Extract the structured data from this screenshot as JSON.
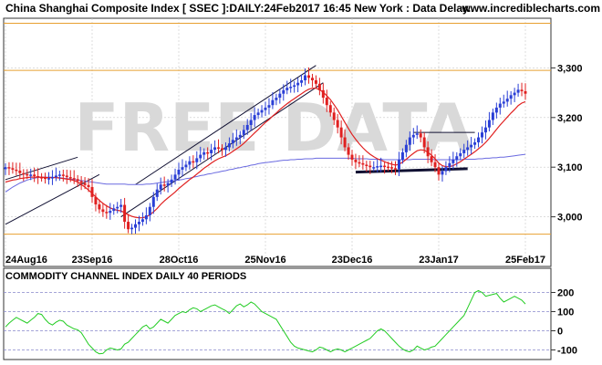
{
  "header": {
    "title": "China Shanghai Composite Index [ SSEC ]:DAILY:24Feb2017 16:45 New York : Data Delay..",
    "site": "www.incrediblecharts.com"
  },
  "watermark": "FREE DATA",
  "colors": {
    "up_candle": "#2a3fd6",
    "down_candle": "#e02020",
    "fast_ma": "#e02020",
    "slow_ma": "#6a6ae0",
    "trend_channel": "#111133",
    "resistance_line": "#e8a030",
    "cci_line": "#22cc22"
  },
  "chart_data": [
    {
      "type": "candlestick",
      "title": "China Shanghai Composite Index [ SSEC ]:DAILY:24Feb2017 16:45 New York : Data Delay..",
      "x_tick_labels": [
        "24Aug16",
        "23Sep16",
        "28Oct16",
        "25Nov16",
        "23Dec16",
        "23Jan17",
        "25Feb17"
      ],
      "y_ticks": [
        3000,
        3100,
        3200,
        3300
      ],
      "y_tick_labels": [
        "3,000",
        "3,100",
        "3,200",
        "3,300"
      ],
      "ylim": [
        2900,
        3400
      ],
      "grid": true,
      "series": [
        {
          "name": "",
          "kind": "price",
          "close": [
            3100,
            3098,
            3095,
            3093,
            3088,
            3086,
            3084,
            3085,
            3082,
            3080,
            3079,
            3077,
            3078,
            3080,
            3083,
            3085,
            3083,
            3080,
            3078,
            3076,
            3072,
            3068,
            3064,
            3060,
            3040,
            3025,
            3015,
            3010,
            3008,
            3012,
            3017,
            3020,
            3024,
            2990,
            2975,
            2978,
            2985,
            2990,
            2995,
            3003,
            3020,
            3040,
            3055,
            3065,
            3063,
            3068,
            3075,
            3085,
            3095,
            3100,
            3105,
            3112,
            3110,
            3118,
            3125,
            3130,
            3128,
            3135,
            3140,
            3138,
            3135,
            3140,
            3148,
            3155,
            3160,
            3165,
            3175,
            3185,
            3195,
            3205,
            3210,
            3215,
            3220,
            3225,
            3235,
            3240,
            3248,
            3255,
            3260,
            3262,
            3265,
            3270,
            3275,
            3285,
            3280,
            3275,
            3268,
            3255,
            3240,
            3225,
            3210,
            3195,
            3180,
            3160,
            3140,
            3125,
            3115,
            3110,
            3108,
            3105,
            3103,
            3100,
            3100,
            3102,
            3103,
            3101,
            3100,
            3098,
            3096,
            3115,
            3130,
            3145,
            3160,
            3165,
            3168,
            3160,
            3140,
            3122,
            3110,
            3100,
            3085,
            3092,
            3100,
            3108,
            3115,
            3122,
            3128,
            3135,
            3140,
            3145,
            3150,
            3160,
            3170,
            3180,
            3195,
            3210,
            3220,
            3228,
            3232,
            3238,
            3245,
            3250,
            3256,
            3253,
            3248
          ]
        },
        {
          "name": "",
          "kind": "moving-average-fast",
          "values": [
            3070,
            3072,
            3074,
            3075,
            3077,
            3078,
            3079,
            3080,
            3080,
            3080,
            3080,
            3079,
            3079,
            3079,
            3079,
            3078,
            3077,
            3076,
            3075,
            3073,
            3070,
            3065,
            3060,
            3054,
            3047,
            3040,
            3033,
            3027,
            3022,
            3018,
            3015,
            3013,
            3012,
            3008,
            3004,
            3001,
            2999,
            2998,
            2998,
            3000,
            3004,
            3010,
            3017,
            3025,
            3032,
            3038,
            3044,
            3050,
            3057,
            3063,
            3069,
            3075,
            3080,
            3086,
            3092,
            3098,
            3103,
            3108,
            3113,
            3117,
            3120,
            3123,
            3127,
            3132,
            3137,
            3142,
            3148,
            3155,
            3162,
            3169,
            3176,
            3183,
            3190,
            3196,
            3203,
            3209,
            3216,
            3222,
            3228,
            3233,
            3238,
            3243,
            3248,
            3253,
            3257,
            3259,
            3259,
            3256,
            3251,
            3244,
            3236,
            3226,
            3215,
            3203,
            3190,
            3178,
            3166,
            3156,
            3147,
            3139,
            3132,
            3126,
            3121,
            3117,
            3114,
            3111,
            3108,
            3106,
            3104,
            3106,
            3110,
            3116,
            3122,
            3128,
            3133,
            3135,
            3134,
            3130,
            3124,
            3117,
            3108,
            3103,
            3101,
            3101,
            3103,
            3107,
            3111,
            3116,
            3121,
            3126,
            3131,
            3137,
            3143,
            3150,
            3158,
            3167,
            3176,
            3185,
            3193,
            3201,
            3209,
            3216,
            3224,
            3229,
            3232
          ]
        },
        {
          "name": "",
          "kind": "moving-average-slow",
          "values": [
            3050,
            3055,
            3060,
            3064,
            3068,
            3071,
            3074,
            3076,
            3078,
            3079,
            3080,
            3080,
            3080,
            3080,
            3079,
            3079,
            3078,
            3077,
            3076,
            3075,
            3074,
            3073,
            3072,
            3071,
            3070,
            3069,
            3068,
            3067,
            3066,
            3066,
            3066,
            3066,
            3066,
            3066,
            3065,
            3065,
            3065,
            3065,
            3065,
            3066,
            3066,
            3067,
            3068,
            3069,
            3070,
            3071,
            3072,
            3073,
            3074,
            3075,
            3077,
            3078,
            3080,
            3081,
            3083,
            3084,
            3086,
            3087,
            3089,
            3090,
            3092,
            3093,
            3095,
            3096,
            3098,
            3099,
            3101,
            3102,
            3104,
            3105,
            3107,
            3108,
            3109,
            3110,
            3111,
            3112,
            3113,
            3114,
            3114,
            3115,
            3115,
            3116,
            3116,
            3117,
            3117,
            3117,
            3118,
            3118,
            3118,
            3118,
            3118,
            3118,
            3118,
            3118,
            3118,
            3118,
            3118,
            3117,
            3117,
            3117,
            3117,
            3116,
            3116,
            3116,
            3116,
            3115,
            3115,
            3115,
            3115,
            3115,
            3115,
            3115,
            3115,
            3116,
            3116,
            3116,
            3116,
            3116,
            3116,
            3115,
            3115,
            3115,
            3115,
            3115,
            3115,
            3115,
            3115,
            3116,
            3116,
            3116,
            3116,
            3117,
            3117,
            3118,
            3118,
            3119,
            3119,
            3120,
            3120,
            3121,
            3122,
            3123,
            3124,
            3125,
            3126
          ]
        }
      ]
    },
    {
      "type": "line",
      "title": "COMMODITY CHANNEL INDEX DAILY 40 PERIODS",
      "y_ticks": [
        200,
        100,
        0,
        -100
      ],
      "y_tick_labels": [
        "200",
        "100",
        "0",
        "-100"
      ],
      "ylim": [
        -150,
        250
      ],
      "grid": true,
      "series": [
        {
          "name": "",
          "values": [
            20,
            40,
            55,
            70,
            60,
            50,
            40,
            55,
            70,
            90,
            85,
            60,
            40,
            30,
            45,
            55,
            50,
            30,
            20,
            10,
            5,
            -10,
            -40,
            -70,
            -90,
            -110,
            -120,
            -118,
            -100,
            -90,
            -95,
            -100,
            -95,
            -70,
            -60,
            -40,
            -20,
            0,
            20,
            30,
            10,
            20,
            40,
            60,
            50,
            40,
            60,
            80,
            90,
            100,
            95,
            110,
            120,
            115,
            100,
            110,
            120,
            130,
            135,
            125,
            115,
            105,
            90,
            110,
            130,
            140,
            125,
            135,
            150,
            140,
            120,
            100,
            90,
            80,
            70,
            60,
            30,
            0,
            -30,
            -60,
            -80,
            -90,
            -95,
            -100,
            -105,
            -110,
            -100,
            -85,
            -90,
            -100,
            -110,
            -100,
            -95,
            -100,
            -110,
            -100,
            -90,
            -80,
            -70,
            -60,
            -50,
            -40,
            -20,
            0,
            10,
            0,
            -20,
            -40,
            -60,
            -80,
            -95,
            -105,
            -110,
            -100,
            -80,
            -90,
            -100,
            -95,
            -85,
            -80,
            -60,
            -40,
            -20,
            0,
            20,
            40,
            60,
            80,
            120,
            160,
            200,
            210,
            200,
            180,
            185,
            190,
            195,
            170,
            150,
            160,
            170,
            180,
            170,
            160,
            140
          ]
        }
      ]
    }
  ]
}
